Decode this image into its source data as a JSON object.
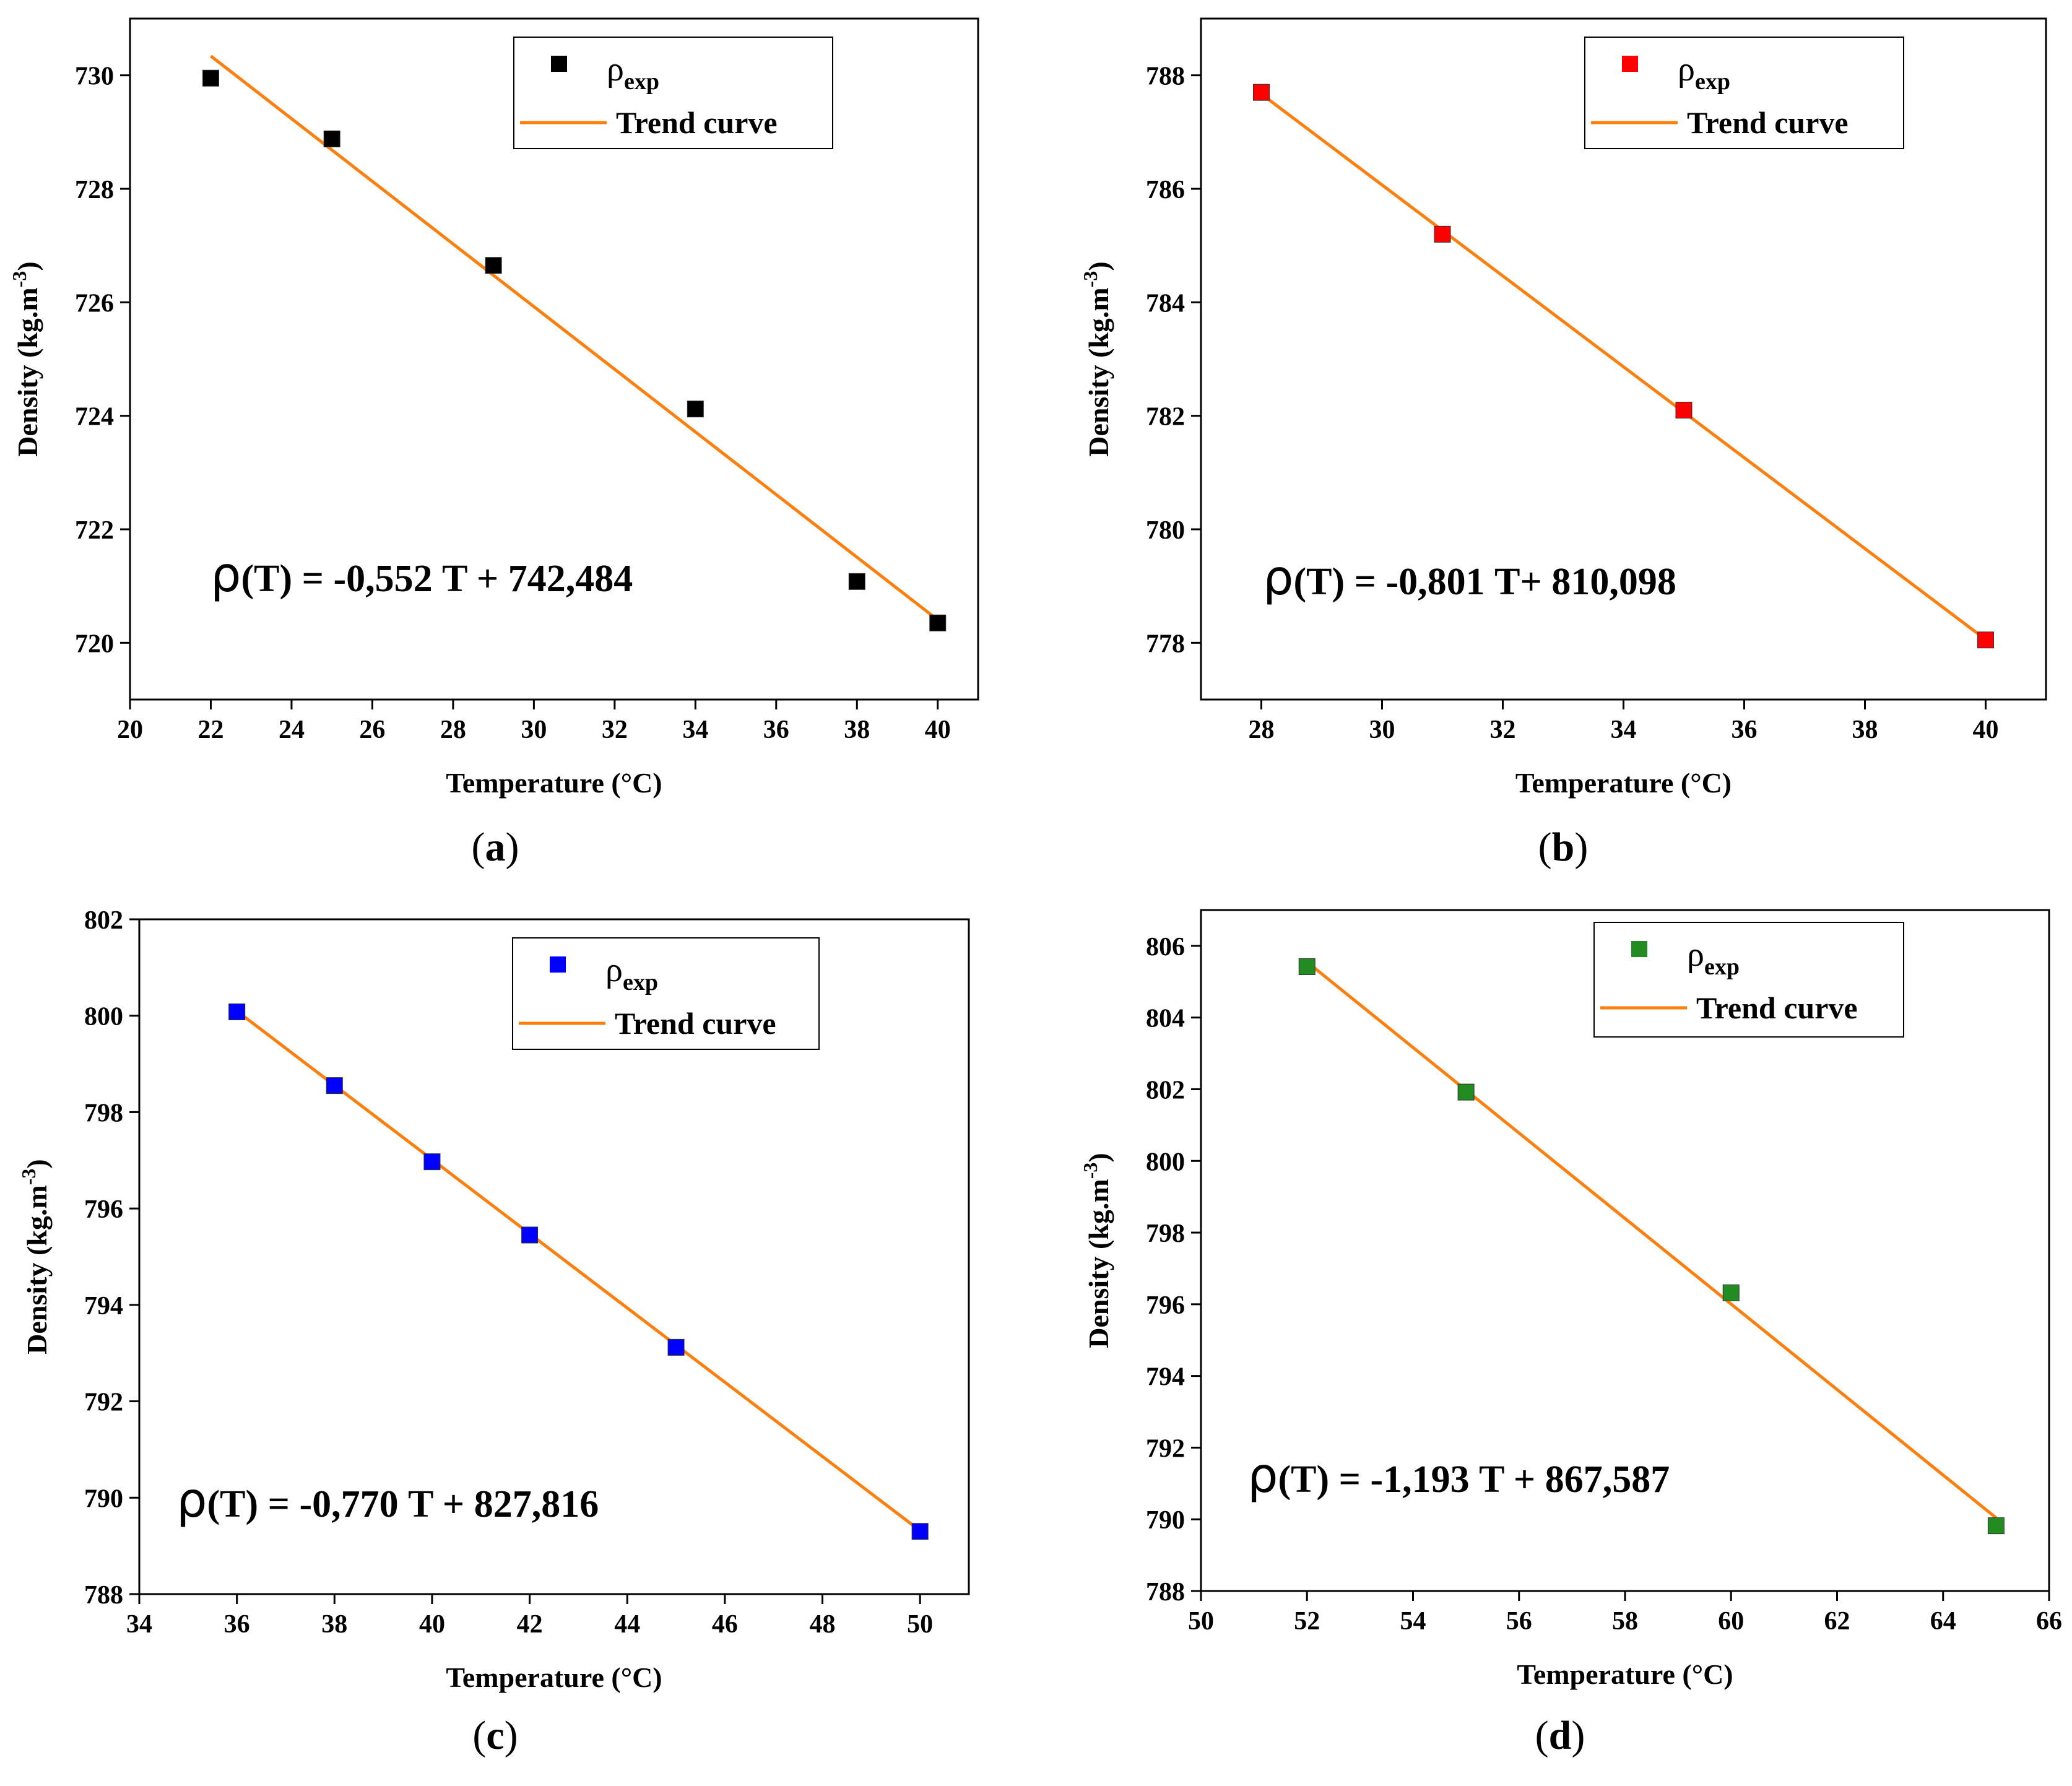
{
  "figure": {
    "panels": [
      {
        "caption_letter": "a",
        "caption_open": "(",
        "caption_close": ")",
        "equation_rho": "ρ",
        "equation_rest": "(T) = -0,552 T + 742,484"
      },
      {
        "caption_letter": "b",
        "caption_open": "(",
        "caption_close": ")",
        "equation_rho": "ρ",
        "equation_rest": "(T) = -0,801 T+ 810,098"
      },
      {
        "caption_letter": "c",
        "caption_open": "(",
        "caption_close": ")",
        "equation_rho": "ρ",
        "equation_rest": "(T) = -0,770 T +  827,816"
      },
      {
        "caption_letter": "d",
        "caption_open": "(",
        "caption_close": ")",
        "equation_rho": "ρ",
        "equation_rest": "(T) =  -1,193 T + 867,587"
      }
    ]
  },
  "chart_data": [
    {
      "type": "scatter",
      "xlabel": "Temperature (°C)",
      "ylabel_base": "Density (kg.m",
      "ylabel_sup": "-3",
      "ylabel_close": ")",
      "xlim": [
        20,
        41
      ],
      "ylim": [
        719,
        731
      ],
      "xticks": [
        20,
        22,
        24,
        26,
        28,
        30,
        32,
        34,
        36,
        38,
        40
      ],
      "yticks": [
        720,
        722,
        724,
        726,
        728,
        730
      ],
      "marker_color": "#000000",
      "trend_color": "#ff7f0e",
      "legend": {
        "placement": "top-right",
        "marker_label_base": "ρ",
        "marker_label_sub": "exp",
        "line_label": "Trend curve"
      },
      "series": [
        {
          "name": "ρexp",
          "x": [
            22,
            25,
            29,
            34,
            38,
            40
          ],
          "y": [
            729.95,
            728.88,
            726.65,
            724.12,
            721.08,
            720.35
          ]
        }
      ],
      "trend": {
        "slope": -0.552,
        "intercept": 742.484,
        "x_range": [
          22,
          40
        ]
      }
    },
    {
      "type": "scatter",
      "xlabel": "Temperature (°C)",
      "ylabel_base": "Density (kg.m",
      "ylabel_sup": "-3",
      "ylabel_close": ")",
      "xlim": [
        27,
        41
      ],
      "ylim": [
        777,
        789
      ],
      "xticks": [
        28,
        30,
        32,
        34,
        36,
        38,
        40
      ],
      "yticks": [
        778,
        780,
        782,
        784,
        786,
        788
      ],
      "marker_color": "#ff0000",
      "trend_color": "#ff7f0e",
      "legend": {
        "placement": "top-right",
        "marker_label_base": "ρ",
        "marker_label_sub": "exp",
        "line_label": "Trend curve"
      },
      "series": [
        {
          "name": "ρexp",
          "x": [
            28,
            31,
            35,
            40
          ],
          "y": [
            787.7,
            785.2,
            782.1,
            778.05
          ]
        }
      ],
      "trend": {
        "slope": -0.801,
        "intercept": 810.098,
        "x_range": [
          28,
          40
        ]
      }
    },
    {
      "type": "scatter",
      "xlabel": "Temperature (°C)",
      "ylabel_base": "Density (kg.m",
      "ylabel_sup": "-3",
      "ylabel_close": ")",
      "xlim": [
        34,
        51
      ],
      "ylim": [
        788,
        802
      ],
      "xticks": [
        34,
        36,
        38,
        40,
        42,
        44,
        46,
        48,
        50
      ],
      "yticks": [
        788,
        790,
        792,
        794,
        796,
        798,
        800,
        802
      ],
      "marker_color": "#0000ff",
      "trend_color": "#ff7f0e",
      "legend": {
        "placement": "top-right",
        "marker_label_base": "ρ",
        "marker_label_sub": "exp",
        "line_label": "Trend curve"
      },
      "series": [
        {
          "name": "ρexp",
          "x": [
            36,
            38,
            40,
            42,
            45,
            50
          ],
          "y": [
            800.08,
            798.55,
            796.97,
            795.45,
            793.12,
            789.3
          ]
        }
      ],
      "trend": {
        "slope": -0.77,
        "intercept": 827.816,
        "x_range": [
          36,
          50
        ]
      }
    },
    {
      "type": "scatter",
      "xlabel": "Temperature (°C)",
      "ylabel_base": "Density (kg.m",
      "ylabel_sup": "-3",
      "ylabel_close": ")",
      "xlim": [
        50,
        66
      ],
      "ylim": [
        788,
        807
      ],
      "xticks": [
        50,
        52,
        54,
        56,
        58,
        60,
        62,
        64,
        66
      ],
      "yticks": [
        788,
        790,
        792,
        794,
        796,
        798,
        800,
        802,
        804,
        806
      ],
      "marker_color": "#228b22",
      "trend_color": "#ff7f0e",
      "legend": {
        "placement": "top-right",
        "marker_label_base": "ρ",
        "marker_label_sub": "exp",
        "line_label": "Trend curve"
      },
      "series": [
        {
          "name": "ρexp",
          "x": [
            52,
            55,
            60,
            65
          ],
          "y": [
            805.42,
            801.92,
            796.32,
            789.82
          ]
        }
      ],
      "trend": {
        "slope": -1.193,
        "intercept": 867.587,
        "x_range": [
          52,
          65
        ]
      }
    }
  ]
}
